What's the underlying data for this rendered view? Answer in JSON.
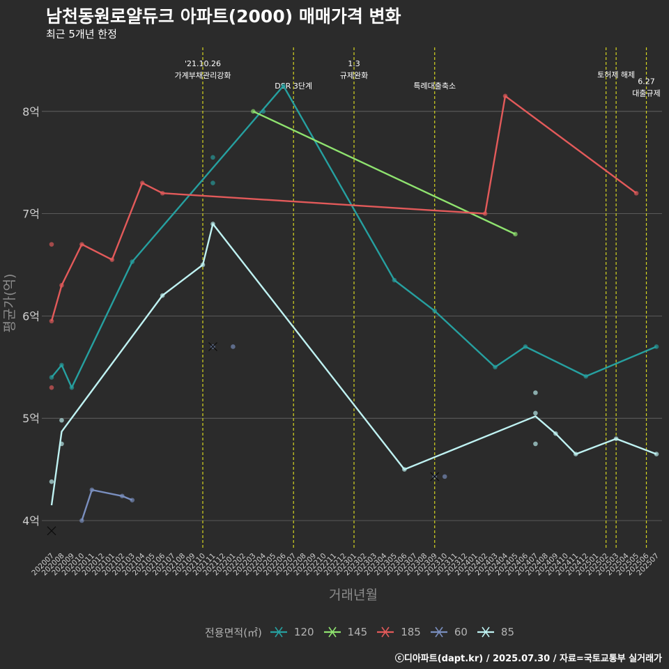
{
  "header": {
    "title": "남천동원로얄듀크 아파트(2000) 매매가격 변화",
    "subtitle": "최근 5개년 한정"
  },
  "caption": "ⓒ디아파트(dapt.kr) / 2025.07.30 / 자료=국토교통부 실거래가",
  "legend": {
    "title": "전용면적(㎡)",
    "items": [
      {
        "label": "120",
        "color": "#26a0a0"
      },
      {
        "label": "145",
        "color": "#8fe36f"
      },
      {
        "label": "185",
        "color": "#e35a5a"
      },
      {
        "label": "60",
        "color": "#7a8fbf"
      },
      {
        "label": "85",
        "color": "#bff2f2"
      }
    ]
  },
  "chart_data": {
    "type": "line",
    "xlabel": "거래년월",
    "ylabel": "평균가(억)",
    "ylim": [
      3.7,
      8.6
    ],
    "yticks": [
      {
        "value": 4,
        "label": "4억"
      },
      {
        "value": 5,
        "label": "5억"
      },
      {
        "value": 6,
        "label": "6억"
      },
      {
        "value": 7,
        "label": "7억"
      },
      {
        "value": 8,
        "label": "8억"
      }
    ],
    "categories": [
      "202007",
      "202008",
      "202009",
      "202010",
      "202011",
      "202012",
      "202101",
      "202102",
      "202103",
      "202104",
      "202105",
      "202106",
      "202107",
      "202108",
      "202109",
      "202110",
      "202111",
      "202112",
      "202201",
      "202202",
      "202203",
      "202204",
      "202205",
      "202206",
      "202207",
      "202208",
      "202209",
      "202210",
      "202211",
      "202212",
      "202301",
      "202302",
      "202303",
      "202304",
      "202305",
      "202306",
      "202307",
      "202308",
      "202309",
      "202310",
      "202311",
      "202312",
      "202401",
      "202402",
      "202403",
      "202404",
      "202405",
      "202406",
      "202407",
      "202408",
      "202409",
      "202410",
      "202411",
      "202412",
      "202501",
      "202502",
      "202503",
      "202504",
      "202505",
      "202506",
      "202507"
    ],
    "events": [
      {
        "x": "202110",
        "lines": [
          "'21.10.26",
          "가계부채관리강화"
        ],
        "level": 0
      },
      {
        "x": "202207",
        "lines": [
          "DSR 3단계"
        ],
        "level": 2
      },
      {
        "x": "202301",
        "lines": [
          "1.3",
          "규제완화"
        ],
        "level": 0
      },
      {
        "x": "202309",
        "lines": [
          "특례대출축소"
        ],
        "level": 2
      },
      {
        "x": "202502",
        "lines": [],
        "level": 0
      },
      {
        "x": "202503",
        "lines": [
          "토허제 해제"
        ],
        "level": 1
      },
      {
        "x": "202506",
        "lines": [
          "6.27",
          "대출규제"
        ],
        "level": 1.6
      }
    ],
    "series": [
      {
        "name": "120",
        "color": "#26a0a0",
        "line": [
          [
            "202007",
            5.4
          ],
          [
            "202008",
            5.52
          ],
          [
            "202009",
            5.3
          ],
          [
            "202103",
            6.53
          ],
          [
            "202206",
            8.25
          ],
          [
            "202305",
            6.35
          ],
          [
            "202309",
            6.05
          ],
          [
            "202403",
            5.5
          ],
          [
            "202406",
            5.7
          ],
          [
            "202412",
            5.41
          ],
          [
            "202507",
            5.7
          ]
        ],
        "points": [
          [
            "202007",
            5.4
          ],
          [
            "202008",
            5.52
          ],
          [
            "202009",
            5.3
          ],
          [
            "202103",
            6.53
          ],
          [
            "202111",
            7.55
          ],
          [
            "202111",
            7.3
          ],
          [
            "202204",
            8.0
          ],
          [
            "202206",
            8.25
          ],
          [
            "202305",
            6.35
          ],
          [
            "202309",
            6.05
          ],
          [
            "202403",
            5.5
          ],
          [
            "202406",
            5.7
          ],
          [
            "202412",
            5.41
          ],
          [
            "202507",
            5.7
          ]
        ],
        "cross": []
      },
      {
        "name": "145",
        "color": "#8fe36f",
        "line": [
          [
            "202203",
            8.0
          ],
          [
            "202405",
            6.8
          ]
        ],
        "points": [
          [
            "202203",
            8.0
          ],
          [
            "202405",
            6.8
          ]
        ],
        "cross": []
      },
      {
        "name": "185",
        "color": "#e35a5a",
        "line": [
          [
            "202007",
            5.95
          ],
          [
            "202008",
            6.3
          ],
          [
            "202010",
            6.7
          ],
          [
            "202101",
            6.55
          ],
          [
            "202104",
            7.3
          ],
          [
            "202106",
            7.2
          ],
          [
            "202402",
            7.0
          ],
          [
            "202404",
            8.15
          ],
          [
            "202505",
            7.2
          ]
        ],
        "points": [
          [
            "202007",
            6.7
          ],
          [
            "202007",
            5.3
          ],
          [
            "202007",
            5.95
          ],
          [
            "202008",
            6.3
          ],
          [
            "202010",
            6.7
          ],
          [
            "202101",
            6.55
          ],
          [
            "202104",
            7.3
          ],
          [
            "202106",
            7.2
          ],
          [
            "202402",
            7.0
          ],
          [
            "202404",
            8.15
          ],
          [
            "202505",
            7.2
          ]
        ],
        "cross": []
      },
      {
        "name": "60",
        "color": "#7a8fbf",
        "line": [
          [
            "202010",
            4.0
          ],
          [
            "202011",
            4.3
          ],
          [
            "202102",
            4.24
          ],
          [
            "202103",
            4.2
          ]
        ],
        "points": [
          [
            "202010",
            4.0
          ],
          [
            "202011",
            4.3
          ],
          [
            "202102",
            4.24
          ],
          [
            "202103",
            4.2
          ],
          [
            "202111",
            5.7
          ],
          [
            "202201",
            5.7
          ],
          [
            "202309",
            4.43
          ],
          [
            "202310",
            4.43
          ]
        ],
        "cross": [
          [
            "202111",
            5.7
          ],
          [
            "202309",
            4.43
          ]
        ]
      },
      {
        "name": "85",
        "color": "#bff2f2",
        "line": [
          [
            "202007",
            4.15
          ],
          [
            "202008",
            4.87
          ],
          [
            "202106",
            6.2
          ],
          [
            "202110",
            6.5
          ],
          [
            "202111",
            6.9
          ],
          [
            "202306",
            4.5
          ],
          [
            "202407",
            5.02
          ],
          [
            "202409",
            4.85
          ],
          [
            "202411",
            4.65
          ],
          [
            "202503",
            4.8
          ],
          [
            "202507",
            4.65
          ]
        ],
        "points": [
          [
            "202007",
            4.38
          ],
          [
            "202008",
            4.98
          ],
          [
            "202008",
            4.75
          ],
          [
            "202106",
            6.2
          ],
          [
            "202110",
            6.5
          ],
          [
            "202111",
            6.9
          ],
          [
            "202306",
            4.5
          ],
          [
            "202407",
            5.25
          ],
          [
            "202407",
            5.05
          ],
          [
            "202407",
            4.75
          ],
          [
            "202409",
            4.85
          ],
          [
            "202411",
            4.65
          ],
          [
            "202503",
            4.8
          ],
          [
            "202507",
            4.65
          ]
        ],
        "cross": [
          [
            "202007",
            3.9
          ]
        ]
      }
    ]
  }
}
